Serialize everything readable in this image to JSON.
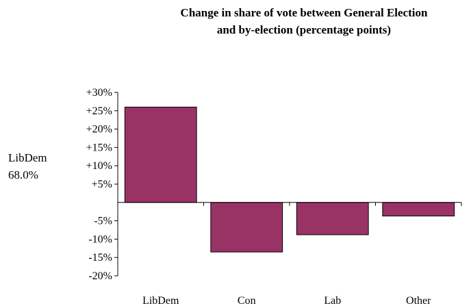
{
  "chart_data": {
    "type": "bar",
    "title": "Change in share of vote between General Election\nand by-election (percentage points)",
    "categories": [
      "LibDem",
      "Con",
      "Lab",
      "Other"
    ],
    "values": [
      26,
      -13.5,
      -8.8,
      -3.7
    ],
    "ylim": [
      -20,
      30
    ],
    "yticks": [
      -20,
      -15,
      -10,
      -5,
      5,
      10,
      15,
      20,
      25,
      30
    ],
    "ytick_labels": [
      "-20%",
      "-15%",
      "-10%",
      "-5%",
      "+5%",
      "+10%",
      "+15%",
      "+20%",
      "+25%",
      "+30%"
    ],
    "bar_color": "#993366",
    "side_label": {
      "name": "LibDem",
      "value": "68.0%"
    }
  }
}
